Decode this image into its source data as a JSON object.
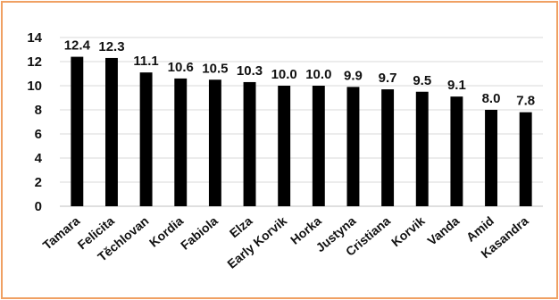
{
  "chart_data": {
    "type": "bar",
    "categories": [
      "Tamara",
      "Felicita",
      "Těchlovan",
      "Kordia",
      "Fabiola",
      "Elza",
      "Early Korvik",
      "Horka",
      "Justyna",
      "Cristiana",
      "Korvik",
      "Vanda",
      "Amid",
      "Kasandra"
    ],
    "values": [
      12.4,
      12.3,
      11.1,
      10.6,
      10.5,
      10.3,
      10.0,
      10.0,
      9.9,
      9.7,
      9.5,
      9.1,
      8.0,
      7.8
    ],
    "data_labels": [
      "12.4",
      "12.3",
      "11.1",
      "10.6",
      "10.5",
      "10.3",
      "10.0",
      "10.0",
      "9.9",
      "9.7",
      "9.5",
      "9.1",
      "8.0",
      "7.8"
    ],
    "title": "",
    "xlabel": "",
    "ylabel": "",
    "ylim": [
      0,
      14
    ],
    "yticks": [
      0,
      2,
      4,
      6,
      8,
      10,
      12,
      14
    ],
    "grid": true,
    "legend": "none",
    "colors": {
      "bar": "#000000",
      "grid": "#d9d9d9",
      "border": "#f0a062",
      "text": "#111111"
    }
  }
}
